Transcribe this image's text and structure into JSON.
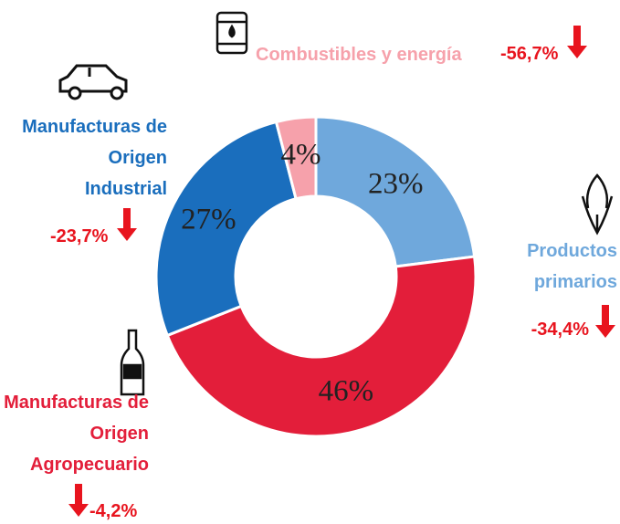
{
  "chart_data": {
    "type": "donut",
    "categories": [
      "Productos primarios",
      "Manufacturas de Origen Agropecuario",
      "Manufacturas de Origen Industrial",
      "Combustibles y energía"
    ],
    "values": [
      23,
      46,
      27,
      4
    ],
    "value_labels": [
      "23%",
      "46%",
      "27%",
      "4%"
    ],
    "colors": [
      "#6fa8dc",
      "#e31e3a",
      "#1a6ebd",
      "#f6a1ab"
    ],
    "changes": [
      -34.4,
      -4.2,
      -23.7,
      -56.7
    ],
    "change_labels": [
      "-34,4%",
      "-4,2%",
      "-23,7%",
      "-56,7%"
    ]
  }
}
